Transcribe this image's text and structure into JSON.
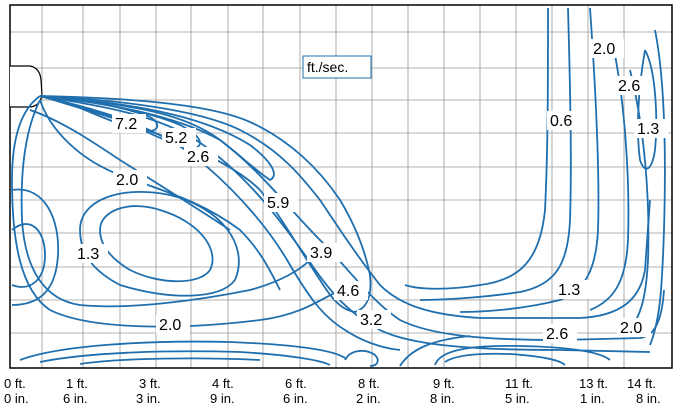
{
  "unit_label": "ft./sec.",
  "contour_labels": [
    "7.2",
    "5.2",
    "2.0",
    "2.6",
    "5.9",
    "1.3",
    "3.9",
    "4.6",
    "3.2",
    "2.0",
    "0.6",
    "2.0",
    "2.6",
    "1.3",
    "1.3",
    "2.6",
    "2.0"
  ],
  "x_ticks": [
    {
      "ft": "0 ft.",
      "in": "0 in."
    },
    {
      "ft": "1 ft.",
      "in": "6 in."
    },
    {
      "ft": "3 ft.",
      "in": "3 in."
    },
    {
      "ft": "4 ft.",
      "in": "9 in."
    },
    {
      "ft": "6 ft.",
      "in": "6 in."
    },
    {
      "ft": "8 ft.",
      "in": "2 in."
    },
    {
      "ft": "9 ft.",
      "in": "8 in."
    },
    {
      "ft": "11 ft.",
      "in": "5 in."
    },
    {
      "ft": "13 ft.",
      "in": "1 in."
    },
    {
      "ft": "14 ft.",
      "in": "8 in."
    }
  ],
  "colors": {
    "contour": "#1f6fae",
    "grid": "#9a9a9a",
    "frame": "#000000",
    "background": "#ffffff"
  }
}
